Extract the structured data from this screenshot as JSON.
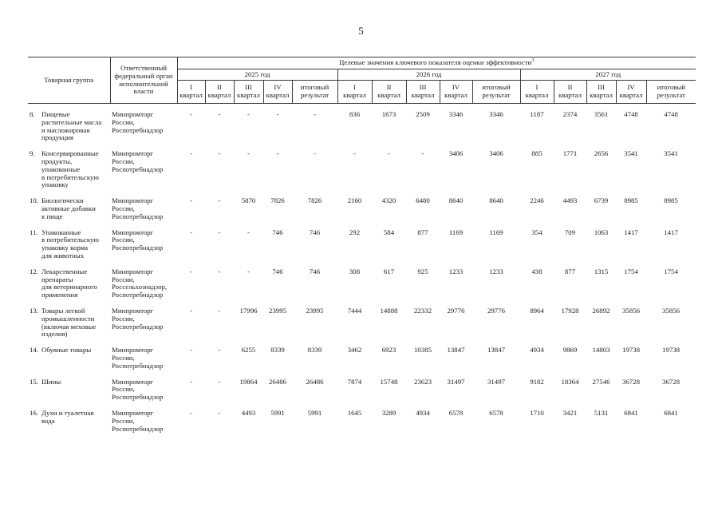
{
  "page": {
    "number": "5"
  },
  "table": {
    "header": {
      "col_product": "Товарная группа",
      "col_agency": "Ответственный федеральный орган исполнительной власти",
      "col_targets": "Целевые значения ключевого показателя оценки эффективности",
      "targets_superscript": "3",
      "years": [
        "2025 год",
        "2026 год",
        "2027 год"
      ],
      "quarter_cols": [
        "I\nквартал",
        "II\nквартал",
        "III\nквартал",
        "IV\nквартал",
        "итоговый\nрезультат"
      ]
    },
    "rows": [
      {
        "num": "8.",
        "product": "Пищевые\nрастительные масла\nи масложировая\nпродукция",
        "agency": "Минпромторг\nРоссии,\nРоспотребнадзор",
        "values": [
          "-",
          "-",
          "-",
          "-",
          "-",
          "836",
          "1673",
          "2509",
          "3346",
          "3346",
          "1187",
          "2374",
          "3561",
          "4748",
          "4748"
        ]
      },
      {
        "num": "9.",
        "product": "Консервированные\nпродукты,\nупакованные\nв потребительскую\nупаковку",
        "agency": "Минпромторг\nРоссии,\nРоспотребнадзор",
        "values": [
          "-",
          "-",
          "-",
          "-",
          "-",
          "-",
          "-",
          "-",
          "3406",
          "3406",
          "885",
          "1771",
          "2656",
          "3541",
          "3541"
        ]
      },
      {
        "num": "10.",
        "product": "Биологически\nактивные добавки\nк пище",
        "agency": "Минпромторг\nРоссии,\nРоспотребнадзор",
        "values": [
          "-",
          "-",
          "5870",
          "7826",
          "7826",
          "2160",
          "4320",
          "6480",
          "8640",
          "8640",
          "2246",
          "4493",
          "6739",
          "8985",
          "8985"
        ]
      },
      {
        "num": "11.",
        "product": "Упакованные\nв потребительскую\nупаковку корма\nдля животных",
        "agency": "Минпромторг\nРоссии,\nРоспотребнадзор",
        "values": [
          "-",
          "-",
          "-",
          "746",
          "746",
          "292",
          "584",
          "877",
          "1169",
          "1169",
          "354",
          "709",
          "1063",
          "1417",
          "1417"
        ]
      },
      {
        "num": "12.",
        "product": "Лекарственные\nпрепараты\nдля ветеринарного\nприменения",
        "agency": "Минпромторг\nРоссии,\nРоссельхознадзор,\nРоспотребнадзор",
        "values": [
          "-",
          "-",
          "-",
          "746",
          "746",
          "308",
          "617",
          "925",
          "1233",
          "1233",
          "438",
          "877",
          "1315",
          "1754",
          "1754"
        ]
      },
      {
        "num": "13.",
        "product": "Товары легкой\nпромышленности\n(включая меховые\nизделия)",
        "agency": "Минпромторг\nРоссии,\nРоспотребнадзор",
        "values": [
          "-",
          "-",
          "17996",
          "23995",
          "23995",
          "7444",
          "14888",
          "22332",
          "29776",
          "29776",
          "8964",
          "17928",
          "26892",
          "35856",
          "35856"
        ]
      },
      {
        "num": "14.",
        "product": "Обувные товары",
        "agency": "Минпромторг\nРоссии,\nРоспотребнадзор",
        "values": [
          "-",
          "-",
          "6255",
          "8339",
          "8339",
          "3462",
          "6923",
          "10385",
          "13847",
          "13847",
          "4934",
          "9869",
          "14803",
          "19738",
          "19738"
        ]
      },
      {
        "num": "15.",
        "product": "Шины",
        "agency": "Минпромторг\nРоссии,\nРоспотребнадзор",
        "values": [
          "-",
          "-",
          "19864",
          "26486",
          "26486",
          "7874",
          "15748",
          "23623",
          "31497",
          "31497",
          "9182",
          "18364",
          "27546",
          "36728",
          "36728"
        ]
      },
      {
        "num": "16.",
        "product": "Духи и туалетная\nвода",
        "agency": "Минпромторг\nРоссии,\nРоспотребнадзор",
        "values": [
          "-",
          "-",
          "4493",
          "5991",
          "5991",
          "1645",
          "3289",
          "4934",
          "6578",
          "6578",
          "1710",
          "3421",
          "5131",
          "6841",
          "6841"
        ]
      }
    ]
  }
}
